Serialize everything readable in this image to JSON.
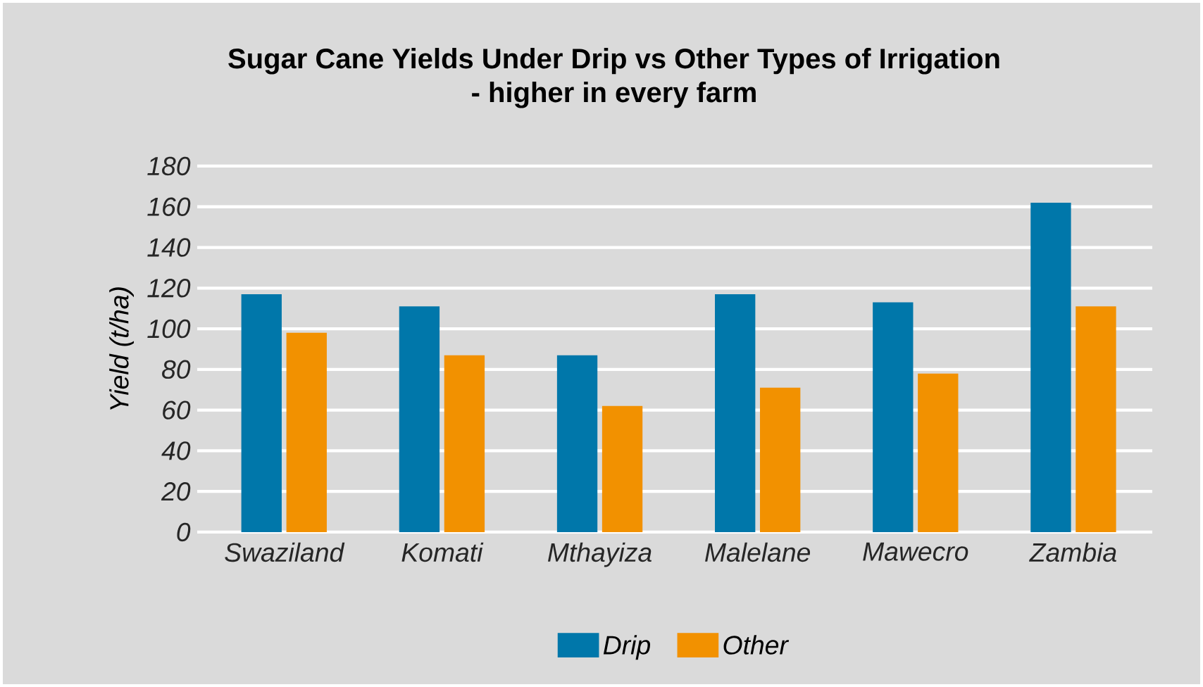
{
  "chart_data": {
    "type": "bar",
    "title": "Sugar Cane Yields Under Drip vs Other Types of Irrigation",
    "subtitle": "- higher in every farm",
    "ylabel": "Yield (t/ha)",
    "categories": [
      "Swaziland",
      "Komati",
      "Mthayiza",
      "Malelane",
      "Mawecro",
      "Zambia"
    ],
    "series": [
      {
        "name": "Drip",
        "color": "#0077aa",
        "values": [
          117,
          111,
          87,
          117,
          113,
          162
        ]
      },
      {
        "name": "Other",
        "color": "#f29100",
        "values": [
          98,
          87,
          62,
          71,
          78,
          111
        ]
      }
    ],
    "ylim": [
      0,
      180
    ],
    "yticks": [
      0,
      20,
      40,
      60,
      80,
      100,
      120,
      140,
      160,
      180
    ],
    "grid": "y",
    "legend": "bottom"
  }
}
